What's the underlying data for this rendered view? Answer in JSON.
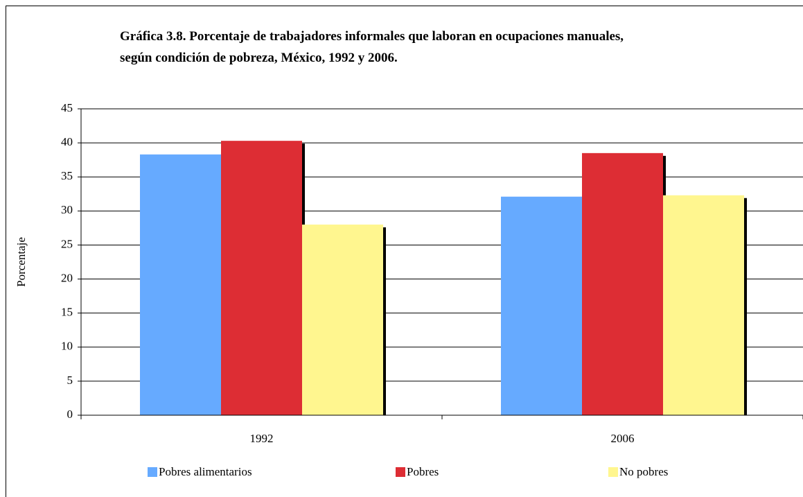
{
  "chart_data": {
    "type": "bar",
    "title": [
      "Gráfica 3.8. Porcentaje de trabajadores informales que laboran en ocupaciones manuales,",
      "según condición de pobreza, México, 1992 y 2006."
    ],
    "y_label": "Porcentaje",
    "categories": [
      "1992",
      "2006"
    ],
    "series": [
      {
        "name": "Pobres alimentarios",
        "color": "#66aaff",
        "values": [
          38.3,
          32.1
        ]
      },
      {
        "name": "Pobres",
        "color": "#dd2d34",
        "values": [
          40.3,
          38.5
        ]
      },
      {
        "name": "No pobres",
        "color": "#fff68f",
        "values": [
          28.0,
          32.3
        ]
      }
    ],
    "ylim": [
      0,
      45
    ],
    "yticks": [
      0,
      5,
      10,
      15,
      20,
      25,
      30,
      35,
      40,
      45
    ],
    "grid": true,
    "legend": "bottom"
  }
}
